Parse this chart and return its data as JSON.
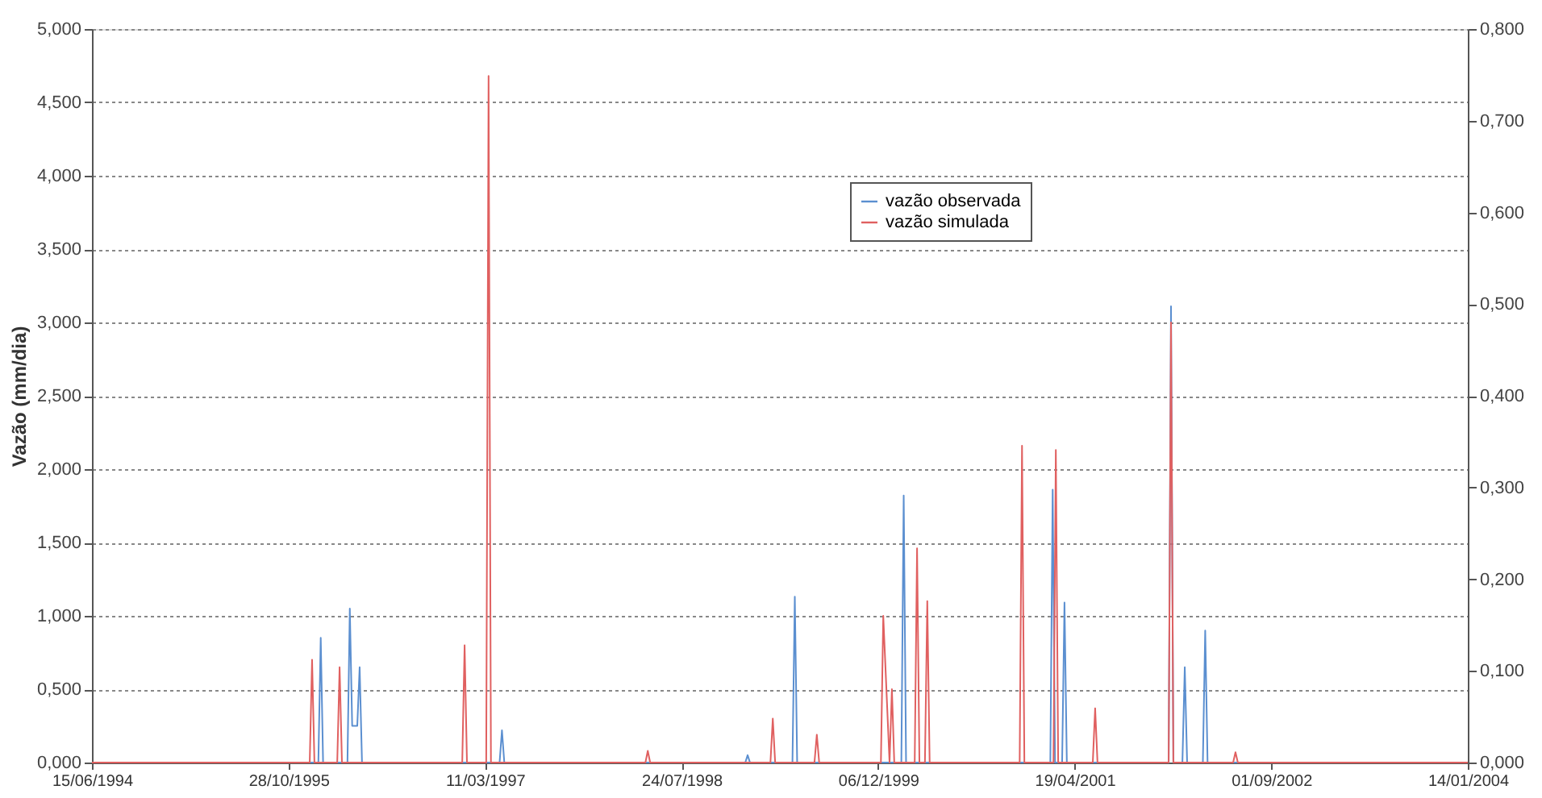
{
  "chart_data": {
    "type": "line",
    "ylabel": "Vazão (mm/dia)",
    "grid": "y",
    "legend": "top right",
    "line_style": "solid",
    "marker": "none",
    "xlim": [
      "1994-06-15",
      "2004-01-14"
    ],
    "xticks": [
      {
        "value": "1994-06-15",
        "label": "15/06/1994"
      },
      {
        "value": "1995-10-28",
        "label": "28/10/1995"
      },
      {
        "value": "1997-03-11",
        "label": "11/03/1997"
      },
      {
        "value": "1998-07-24",
        "label": "24/07/1998"
      },
      {
        "value": "1999-12-06",
        "label": "06/12/1999"
      },
      {
        "value": "2001-04-19",
        "label": "19/04/2001"
      },
      {
        "value": "2002-09-01",
        "label": "01/09/2002"
      },
      {
        "value": "2004-01-14",
        "label": "14/01/2004"
      }
    ],
    "ylim": [
      0,
      5
    ],
    "yticks": [
      {
        "value": 0,
        "label": "0,000"
      },
      {
        "value": 0.5,
        "label": "0,500"
      },
      {
        "value": 1,
        "label": "1,000"
      },
      {
        "value": 1.5,
        "label": "1,500"
      },
      {
        "value": 2,
        "label": "2,000"
      },
      {
        "value": 2.5,
        "label": "2,500"
      },
      {
        "value": 3,
        "label": "3,000"
      },
      {
        "value": 3.5,
        "label": "3,500"
      },
      {
        "value": 4,
        "label": "4,000"
      },
      {
        "value": 4.5,
        "label": "4,500"
      },
      {
        "value": 5,
        "label": "5,000"
      }
    ],
    "y2lim": [
      0,
      0.8
    ],
    "y2ticks": [
      {
        "value": 0,
        "label": "0,000"
      },
      {
        "value": 0.1,
        "label": "0,100"
      },
      {
        "value": 0.2,
        "label": "0,200"
      },
      {
        "value": 0.3,
        "label": "0,300"
      },
      {
        "value": 0.4,
        "label": "0,400"
      },
      {
        "value": 0.5,
        "label": "0,500"
      },
      {
        "value": 0.6,
        "label": "0,600"
      },
      {
        "value": 0.7,
        "label": "0,700"
      },
      {
        "value": 0.8,
        "label": "0,800"
      }
    ],
    "series": [
      {
        "name": "vazão observada",
        "color": "#5b8fd0",
        "x": [
          "1994-06-15",
          "1996-01-12",
          "1996-01-18",
          "1996-01-24",
          "1996-03-26",
          "1996-04-01",
          "1996-04-07",
          "1996-04-20",
          "1996-04-26",
          "1996-05-02",
          "1997-04-17",
          "1997-04-23",
          "1997-04-29",
          "1999-01-02",
          "1999-01-08",
          "1999-01-14",
          "1999-05-02",
          "1999-05-08",
          "1999-05-14",
          "2000-02-03",
          "2000-02-09",
          "2000-02-15",
          "2001-02-16",
          "2001-02-22",
          "2001-02-28",
          "2001-03-18",
          "2001-03-24",
          "2001-03-30",
          "2001-12-14",
          "2001-12-20",
          "2001-12-26",
          "2002-01-18",
          "2002-01-24",
          "2002-01-30",
          "2002-03-11",
          "2002-03-17",
          "2002-03-23",
          "2004-01-14"
        ],
        "values": [
          0,
          0,
          0.85,
          0,
          0,
          1.05,
          0.25,
          0.25,
          0.65,
          0,
          0,
          0.22,
          0,
          0,
          0.05,
          0,
          0,
          1.13,
          0,
          0,
          1.82,
          0,
          0,
          1.86,
          0,
          0,
          1.09,
          0,
          0,
          3.11,
          0,
          0,
          0.65,
          0,
          0,
          0.9,
          0,
          0
        ]
      },
      {
        "name": "vazão simulada",
        "color": "#e06060",
        "x": [
          "1994-06-15",
          "1995-12-21",
          "1995-12-27",
          "1996-01-02",
          "1996-02-29",
          "1996-03-06",
          "1996-03-12",
          "1997-01-12",
          "1997-01-18",
          "1997-01-24",
          "1997-03-14",
          "1997-03-20",
          "1997-03-26",
          "1998-04-23",
          "1998-04-29",
          "1998-05-05",
          "1999-03-07",
          "1999-03-13",
          "1999-03-19",
          "1999-06-27",
          "1999-07-03",
          "1999-07-09",
          "1999-12-13",
          "1999-12-19",
          "2000-01-04",
          "2000-01-10",
          "2000-01-16",
          "2000-03-08",
          "2000-03-14",
          "2000-03-20",
          "2000-04-03",
          "2000-04-09",
          "2000-04-15",
          "2000-11-30",
          "2000-12-06",
          "2000-12-12",
          "2001-02-24",
          "2001-03-02",
          "2001-03-08",
          "2001-06-04",
          "2001-06-10",
          "2001-06-16",
          "2001-12-14",
          "2001-12-20",
          "2001-12-26",
          "2002-05-27",
          "2002-06-02",
          "2002-06-08",
          "2004-01-14"
        ],
        "values": [
          0,
          0,
          0.7,
          0,
          0,
          0.65,
          0,
          0,
          0.8,
          0,
          0,
          4.68,
          0,
          0,
          0.08,
          0,
          0,
          0.3,
          0,
          0,
          0.19,
          0,
          0,
          1.0,
          0,
          0.5,
          0,
          0,
          1.46,
          0,
          0,
          1.1,
          0,
          0,
          2.16,
          0,
          0,
          2.13,
          0,
          0,
          0.37,
          0,
          0,
          3.0,
          0,
          0,
          0.07,
          0,
          0
        ]
      }
    ]
  }
}
